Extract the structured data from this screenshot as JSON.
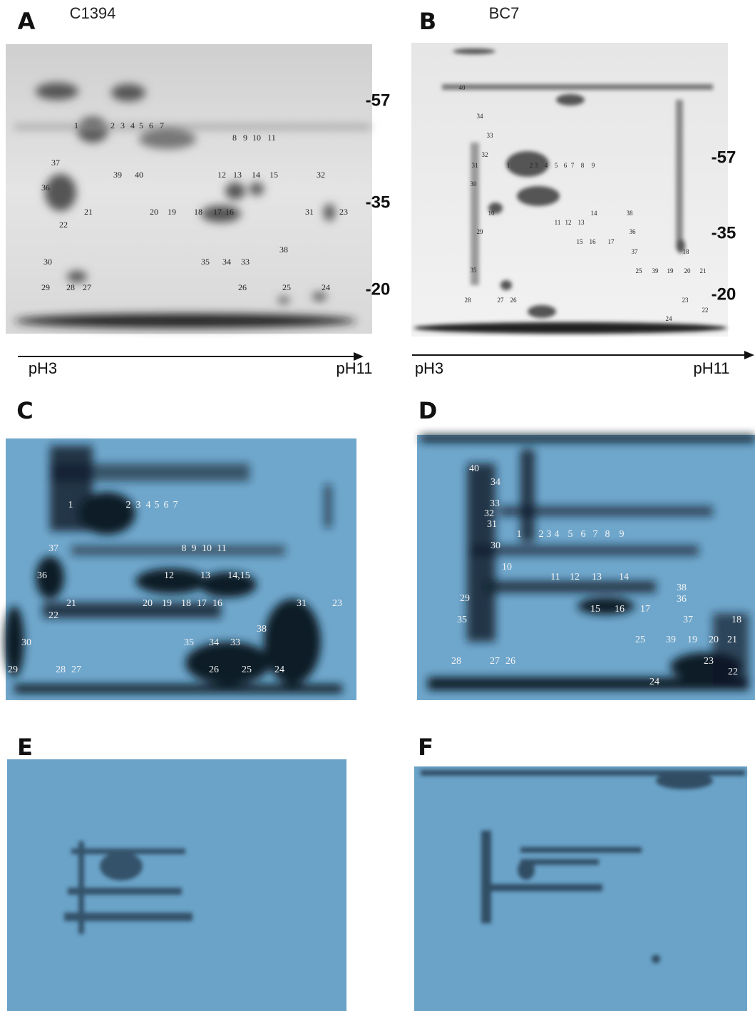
{
  "panels": [
    {
      "letter": "A",
      "sample": "C1394",
      "markers": [
        "-57",
        "-35",
        "-20"
      ],
      "ph": [
        "pH3",
        "pH11"
      ],
      "spots": [
        "1",
        "2",
        "3",
        "4",
        "5",
        "6",
        "7",
        "8",
        "9",
        "10",
        "11",
        "37",
        "39",
        "40",
        "12",
        "13",
        "14",
        "15",
        "32",
        "36",
        "21",
        "20",
        "19",
        "18",
        "17",
        "16",
        "31",
        "23",
        "22",
        "38",
        "30",
        "35",
        "34",
        "33",
        "29",
        "28",
        "27",
        "26",
        "25",
        "24"
      ]
    },
    {
      "letter": "B",
      "sample": "BC7",
      "markers": [
        "-57",
        "-35",
        "-20"
      ],
      "ph": [
        "pH3",
        "pH11"
      ],
      "spots": [
        "40",
        "34",
        "33",
        "32",
        "31",
        "1",
        "2",
        "3",
        "4",
        "5",
        "6",
        "7",
        "8",
        "9",
        "30",
        "10",
        "14",
        "38",
        "11",
        "12",
        "13",
        "36",
        "29",
        "15",
        "16",
        "17",
        "37",
        "18",
        "35",
        "25",
        "39",
        "19",
        "20",
        "21",
        "28",
        "27",
        "26",
        "23",
        "22",
        "24"
      ]
    },
    {
      "letter": "C",
      "spots": [
        "1",
        "2",
        "3",
        "4",
        "5",
        "6",
        "7",
        "37",
        "8",
        "9",
        "10",
        "11",
        "36",
        "12",
        "13",
        "14,15",
        "21",
        "20",
        "19",
        "18",
        "17",
        "16",
        "31",
        "23",
        "22",
        "38",
        "30",
        "35",
        "34",
        "33",
        "29",
        "28",
        "27",
        "26",
        "25",
        "24"
      ]
    },
    {
      "letter": "D",
      "spots": [
        "40",
        "34",
        "33",
        "32",
        "31",
        "1",
        "2",
        "3",
        "4",
        "5",
        "6",
        "7",
        "8",
        "9",
        "30",
        "10",
        "11",
        "12",
        "13",
        "14",
        "38",
        "36",
        "29",
        "15",
        "16",
        "17",
        "35",
        "37",
        "18",
        "25",
        "39",
        "19",
        "20",
        "21",
        "28",
        "27",
        "26",
        "23",
        "22",
        "24"
      ]
    },
    {
      "letter": "E"
    },
    {
      "letter": "F"
    }
  ]
}
